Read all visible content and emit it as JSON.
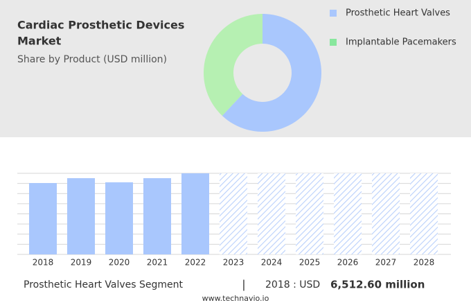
{
  "chart_data": [
    {
      "type": "donut",
      "title_lines": [
        "Cardiac Prosthetic Devices",
        "Market"
      ],
      "subtitle": "Share by Product (USD million)",
      "categories": [
        "Prosthetic Heart Valves",
        "Implantable Pacemakers"
      ],
      "values": [
        62,
        38
      ],
      "colors": [
        "#a9c7fd",
        "#b6f0b2"
      ],
      "legend_colors": [
        "#a9c7fd",
        "#88e79d"
      ]
    },
    {
      "type": "bar",
      "categories": [
        "2018",
        "2019",
        "2020",
        "2021",
        "2022",
        "2023",
        "2024",
        "2025",
        "2026",
        "2027",
        "2028"
      ],
      "values": [
        6512.6,
        6955,
        6576,
        6955,
        7398,
        null,
        null,
        null,
        null,
        null,
        null
      ],
      "color": "#a9c7fd",
      "ylim": [
        0,
        7400
      ],
      "yticks": [
        0,
        925,
        1850,
        2775,
        3700,
        4625,
        5550,
        6475,
        7400
      ],
      "grid": true,
      "footer": {
        "segment": "Prosthetic Heart Valves Segment",
        "separator": "|",
        "year_label": "2018 : USD",
        "amount": "6,512.60 million",
        "source": "www.technavio.io"
      }
    }
  ]
}
